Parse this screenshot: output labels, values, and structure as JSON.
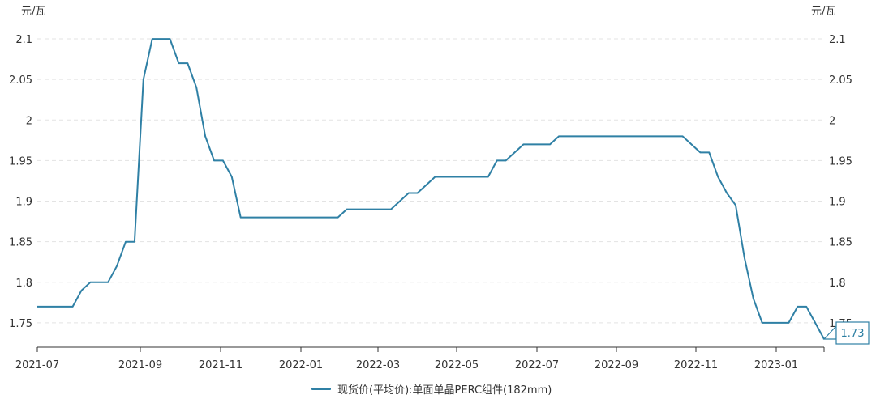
{
  "chart_data": {
    "type": "line",
    "y_unit_left": "元/瓦",
    "y_unit_right": "元/瓦",
    "ylim": [
      1.72,
      2.12
    ],
    "yticks": [
      "1.75",
      "1.8",
      "1.85",
      "1.9",
      "1.95",
      "2",
      "2.05",
      "2.1"
    ],
    "xticks": [
      "2021-07",
      "2021-09",
      "2021-11",
      "2022-01",
      "2022-03",
      "2022-05",
      "2022-07",
      "2022-09",
      "2022-11",
      "2023-01"
    ],
    "grid": true,
    "legend_position": "bottom",
    "series": [
      {
        "name": "现货价(平均价):单面单晶PERC组件(182mm)",
        "color": "#2f80a5",
        "values": [
          1.77,
          1.77,
          1.77,
          1.77,
          1.77,
          1.79,
          1.8,
          1.8,
          1.8,
          1.82,
          1.85,
          1.85,
          2.05,
          2.1,
          2.1,
          2.1,
          2.07,
          2.07,
          2.04,
          1.98,
          1.95,
          1.95,
          1.93,
          1.88,
          1.88,
          1.88,
          1.88,
          1.88,
          1.88,
          1.88,
          1.88,
          1.88,
          1.88,
          1.88,
          1.88,
          1.89,
          1.89,
          1.89,
          1.89,
          1.89,
          1.89,
          1.9,
          1.91,
          1.91,
          1.92,
          1.93,
          1.93,
          1.93,
          1.93,
          1.93,
          1.93,
          1.93,
          1.95,
          1.95,
          1.96,
          1.97,
          1.97,
          1.97,
          1.97,
          1.98,
          1.98,
          1.98,
          1.98,
          1.98,
          1.98,
          1.98,
          1.98,
          1.98,
          1.98,
          1.98,
          1.98,
          1.98,
          1.98,
          1.98,
          1.97,
          1.96,
          1.96,
          1.93,
          1.91,
          1.895,
          1.83,
          1.78,
          1.75,
          1.75,
          1.75,
          1.75,
          1.77,
          1.77,
          1.75,
          1.73
        ]
      }
    ],
    "last_value_label": "1.73"
  }
}
